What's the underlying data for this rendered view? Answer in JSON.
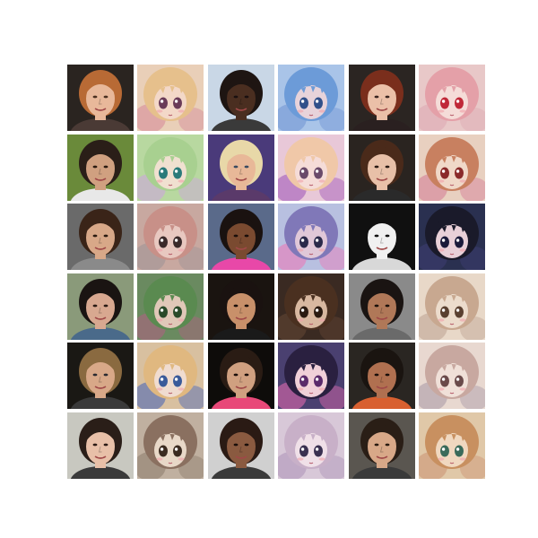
{
  "figure": {
    "rows": 6,
    "columns": 6,
    "background": "#ffffff",
    "tiles": [
      {
        "kind": "photo",
        "bg": "#2a2420",
        "hair": "#b86a35",
        "skin": "#e8b89a",
        "cloth": "#4a3a35",
        "eye": "#4a3020"
      },
      {
        "kind": "anime",
        "bg": "#e9cfb8",
        "hair": "#e6c08c",
        "skin": "#f3d8c8",
        "cloth": "#d99aa0",
        "eye": "#6a3b58"
      },
      {
        "kind": "photo",
        "bg": "#c9d7e6",
        "hair": "#1e1512",
        "skin": "#4a2e20",
        "cloth": "#3a3a3a",
        "eye": "#1a1010"
      },
      {
        "kind": "anime",
        "bg": "#a9c4e8",
        "hair": "#6c9bd8",
        "skin": "#e7d3da",
        "cloth": "#7fa0d8",
        "eye": "#30508a"
      },
      {
        "kind": "photo",
        "bg": "#2b2522",
        "hair": "#7a2e1c",
        "skin": "#ebc0a8",
        "cloth": "#2a2020",
        "eye": "#3a2520"
      },
      {
        "kind": "anime",
        "bg": "#e8c8c8",
        "hair": "#e4a0a8",
        "skin": "#f5dcd8",
        "cloth": "#e0b0b8",
        "eye": "#c02838"
      },
      {
        "kind": "photo",
        "bg": "#6a8a3a",
        "hair": "#2a1e18",
        "skin": "#d0a080",
        "cloth": "#e8e8e8",
        "eye": "#2a1a10"
      },
      {
        "kind": "anime",
        "bg": "#b8d8a0",
        "hair": "#a8d090",
        "skin": "#f0e0d0",
        "cloth": "#c8b0d0",
        "eye": "#2a7a7a"
      },
      {
        "kind": "photo",
        "bg": "#4a3a7a",
        "hair": "#e8d8a8",
        "skin": "#e8b898",
        "cloth": "#5a3a6a",
        "eye": "#3a4a60"
      },
      {
        "kind": "anime",
        "bg": "#e8c8d8",
        "hair": "#f0c8a8",
        "skin": "#f5dcd8",
        "cloth": "#b070c0",
        "eye": "#6a4a6a"
      },
      {
        "kind": "photo",
        "bg": "#2a2420",
        "hair": "#4a2a1a",
        "skin": "#e8c0a8",
        "cloth": "#2a2a2a",
        "eye": "#2a1a14"
      },
      {
        "kind": "anime",
        "bg": "#e8d0c0",
        "hair": "#c88060",
        "skin": "#f0d8c8",
        "cloth": "#d890a0",
        "eye": "#8a2a2a"
      },
      {
        "kind": "photo",
        "bg": "#6a6a6a",
        "hair": "#3a2418",
        "skin": "#d8a888",
        "cloth": "#8a8a8a",
        "eye": "#2a1a10"
      },
      {
        "kind": "anime",
        "bg": "#c8a8a0",
        "hair": "#c89088",
        "skin": "#e8c8c0",
        "cloth": "#a89898",
        "eye": "#3a2a2a"
      },
      {
        "kind": "photo",
        "bg": "#5a6a8a",
        "hair": "#1a1210",
        "skin": "#7a4a30",
        "cloth": "#e848a8",
        "eye": "#1a0e0a"
      },
      {
        "kind": "anime",
        "bg": "#b8c0e0",
        "hair": "#8078b8",
        "skin": "#e0c8d8",
        "cloth": "#e088c0",
        "eye": "#2a2a4a"
      },
      {
        "kind": "photo",
        "bg": "#101010",
        "hair": "#101010",
        "skin": "#f0f0f0",
        "cloth": "#d8d8d8",
        "eye": "#101010"
      },
      {
        "kind": "anime",
        "bg": "#2a3050",
        "hair": "#1a1a2a",
        "skin": "#e8d0d8",
        "cloth": "#3a3a6a",
        "eye": "#1a1a3a"
      },
      {
        "kind": "photo",
        "bg": "#8a9a7a",
        "hair": "#1a1412",
        "skin": "#d8a890",
        "cloth": "#4a6a8a",
        "eye": "#2a1a14"
      },
      {
        "kind": "anime",
        "bg": "#6a8a60",
        "hair": "#5a8a50",
        "skin": "#e0c8b8",
        "cloth": "#a06a7a",
        "eye": "#2a4a2a"
      },
      {
        "kind": "photo",
        "bg": "#1a1410",
        "hair": "#1a1210",
        "skin": "#c8906a",
        "cloth": "#1a1a1a",
        "eye": "#1a0e0a"
      },
      {
        "kind": "anime",
        "bg": "#3a2a22",
        "hair": "#4a3020",
        "skin": "#d8b8a0",
        "cloth": "#5a4030",
        "eye": "#2a1a10"
      },
      {
        "kind": "photo",
        "bg": "#8a8a8a",
        "hair": "#1a1412",
        "skin": "#b07858",
        "cloth": "#6a6a6a",
        "eye": "#1a100a"
      },
      {
        "kind": "anime",
        "bg": "#e8d8c8",
        "hair": "#c8a890",
        "skin": "#ecdccc",
        "cloth": "#c8b0a0",
        "eye": "#5a4030"
      },
      {
        "kind": "photo",
        "bg": "#1a1814",
        "hair": "#8a6a40",
        "skin": "#d8a888",
        "cloth": "#3a3a3a",
        "eye": "#2a2a30"
      },
      {
        "kind": "anime",
        "bg": "#d8c0a0",
        "hair": "#e0b880",
        "skin": "#f0dcd0",
        "cloth": "#6a7ab0",
        "eye": "#3a5a9a"
      },
      {
        "kind": "photo",
        "bg": "#0e0c0a",
        "hair": "#2a1c14",
        "skin": "#d0a080",
        "cloth": "#e84878",
        "eye": "#1a0e0a"
      },
      {
        "kind": "anime",
        "bg": "#4a4070",
        "hair": "#2a2040",
        "skin": "#f0d0d8",
        "cloth": "#c060a0",
        "eye": "#5a2a6a"
      },
      {
        "kind": "photo",
        "bg": "#2a2622",
        "hair": "#1a1410",
        "skin": "#b07050",
        "cloth": "#d86030",
        "eye": "#1a0e0a"
      },
      {
        "kind": "anime",
        "bg": "#e8d8d0",
        "hair": "#c8a8a0",
        "skin": "#f0e0d8",
        "cloth": "#b8a8b0",
        "eye": "#6a4a4a"
      },
      {
        "kind": "photo",
        "bg": "#c8c8c0",
        "hair": "#2a1e18",
        "skin": "#e8c0a8",
        "cloth": "#3a3a3a",
        "eye": "#2a1a14"
      },
      {
        "kind": "anime",
        "bg": "#c0b0a0",
        "hair": "#8a7060",
        "skin": "#e8d8c8",
        "cloth": "#9a8a7a",
        "eye": "#3a2a20"
      },
      {
        "kind": "photo",
        "bg": "#d0d0d0",
        "hair": "#2a1a14",
        "skin": "#8a5a40",
        "cloth": "#3a3a3a",
        "eye": "#1a0e0a"
      },
      {
        "kind": "anime",
        "bg": "#d8c8d8",
        "hair": "#c8b0c8",
        "skin": "#f0e0e8",
        "cloth": "#b8a0c0",
        "eye": "#3a3050"
      },
      {
        "kind": "photo",
        "bg": "#5a5650",
        "hair": "#2a1e16",
        "skin": "#d8a888",
        "cloth": "#3a3a3a",
        "eye": "#2a1a10"
      },
      {
        "kind": "anime",
        "bg": "#e0c8a8",
        "hair": "#c89060",
        "skin": "#f0d8c0",
        "cloth": "#d0a080",
        "eye": "#3a6a5a"
      }
    ]
  }
}
